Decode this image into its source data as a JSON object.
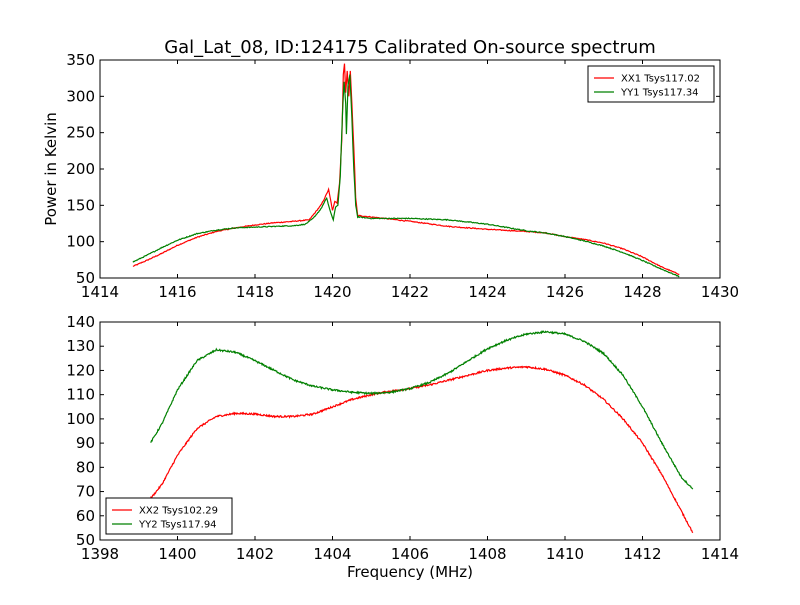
{
  "figure": {
    "title": "Gal_Lat_08, ID:124175 Calibrated On-source spectrum",
    "xlabel": "Frequency (MHz)"
  },
  "chart_data": [
    {
      "type": "line",
      "ylabel": "Power in Kelvin",
      "xlim": [
        1414,
        1430
      ],
      "ylim": [
        50,
        350
      ],
      "xticks": [
        1414,
        1416,
        1418,
        1420,
        1422,
        1424,
        1426,
        1428,
        1430
      ],
      "yticks": [
        50,
        100,
        150,
        200,
        250,
        300,
        350
      ],
      "legend_position": "top-right",
      "series": [
        {
          "name": "XX1 Tsys117.02",
          "color": "#ff0000",
          "points": [
            [
              1414.85,
              66
            ],
            [
              1415.2,
              74
            ],
            [
              1415.6,
              84
            ],
            [
              1416,
              95
            ],
            [
              1416.5,
              106
            ],
            [
              1417,
              114
            ],
            [
              1417.5,
              119
            ],
            [
              1418,
              123
            ],
            [
              1418.5,
              126
            ],
            [
              1419,
              128
            ],
            [
              1419.4,
              130
            ],
            [
              1419.55,
              140
            ],
            [
              1419.7,
              150
            ],
            [
              1419.8,
              160
            ],
            [
              1419.9,
              172
            ],
            [
              1420,
              143
            ],
            [
              1420.06,
              155
            ],
            [
              1420.12,
              153
            ],
            [
              1420.18,
              180
            ],
            [
              1420.24,
              240
            ],
            [
              1420.28,
              330
            ],
            [
              1420.31,
              345
            ],
            [
              1420.34,
              305
            ],
            [
              1420.38,
              335
            ],
            [
              1420.42,
              300
            ],
            [
              1420.46,
              335
            ],
            [
              1420.5,
              290
            ],
            [
              1420.55,
              230
            ],
            [
              1420.6,
              160
            ],
            [
              1420.65,
              136
            ],
            [
              1421,
              134
            ],
            [
              1422,
              128
            ],
            [
              1423,
              121
            ],
            [
              1424,
              117
            ],
            [
              1425,
              114
            ],
            [
              1425.5,
              112
            ],
            [
              1426,
              107
            ],
            [
              1426.5,
              103
            ],
            [
              1427,
              98
            ],
            [
              1427.5,
              90
            ],
            [
              1428,
              79
            ],
            [
              1428.5,
              65
            ],
            [
              1428.95,
              55
            ]
          ]
        },
        {
          "name": "YY1 Tsys117.34",
          "color": "#008000",
          "points": [
            [
              1414.85,
              72
            ],
            [
              1415.2,
              81
            ],
            [
              1415.6,
              92
            ],
            [
              1416,
              102
            ],
            [
              1416.5,
              111
            ],
            [
              1417,
              116
            ],
            [
              1417.5,
              119
            ],
            [
              1418,
              120
            ],
            [
              1418.5,
              121
            ],
            [
              1419,
              122
            ],
            [
              1419.3,
              124
            ],
            [
              1419.5,
              132
            ],
            [
              1419.7,
              145
            ],
            [
              1419.85,
              160
            ],
            [
              1419.95,
              140
            ],
            [
              1420.02,
              130
            ],
            [
              1420.08,
              148
            ],
            [
              1420.14,
              150
            ],
            [
              1420.2,
              190
            ],
            [
              1420.26,
              280
            ],
            [
              1420.3,
              320
            ],
            [
              1420.34,
              290
            ],
            [
              1420.36,
              248
            ],
            [
              1420.4,
              315
            ],
            [
              1420.45,
              330
            ],
            [
              1420.5,
              270
            ],
            [
              1420.55,
              200
            ],
            [
              1420.6,
              150
            ],
            [
              1420.65,
              134
            ],
            [
              1421,
              132
            ],
            [
              1422,
              132
            ],
            [
              1423,
              130
            ],
            [
              1424,
              124
            ],
            [
              1425,
              115
            ],
            [
              1425.5,
              112
            ],
            [
              1426,
              107
            ],
            [
              1426.5,
              101
            ],
            [
              1427,
              94
            ],
            [
              1427.5,
              85
            ],
            [
              1428,
              74
            ],
            [
              1428.5,
              62
            ],
            [
              1428.95,
              52
            ]
          ]
        }
      ]
    },
    {
      "type": "line",
      "xlim": [
        1398,
        1414
      ],
      "ylim": [
        50,
        140
      ],
      "xticks": [
        1398,
        1400,
        1402,
        1404,
        1406,
        1408,
        1410,
        1412,
        1414
      ],
      "yticks": [
        50,
        60,
        70,
        80,
        90,
        100,
        110,
        120,
        130,
        140
      ],
      "legend_position": "bottom-left",
      "series": [
        {
          "name": "XX2 Tsys102.29",
          "color": "#ff0000",
          "points": [
            [
              1399.3,
              67
            ],
            [
              1399.6,
              73
            ],
            [
              1400,
              85
            ],
            [
              1400.5,
              96
            ],
            [
              1401,
              101
            ],
            [
              1401.5,
              102.3
            ],
            [
              1402,
              102
            ],
            [
              1402.5,
              101
            ],
            [
              1403,
              101
            ],
            [
              1403.5,
              102
            ],
            [
              1404,
              105
            ],
            [
              1404.5,
              108
            ],
            [
              1405,
              110
            ],
            [
              1405.5,
              111.5
            ],
            [
              1406,
              112.5
            ],
            [
              1406.5,
              114
            ],
            [
              1407,
              116
            ],
            [
              1407.5,
              118
            ],
            [
              1408,
              120
            ],
            [
              1408.5,
              121
            ],
            [
              1409,
              121.5
            ],
            [
              1409.5,
              120.5
            ],
            [
              1410,
              118
            ],
            [
              1410.5,
              114
            ],
            [
              1411,
              108
            ],
            [
              1411.5,
              100
            ],
            [
              1412,
              90
            ],
            [
              1412.5,
              77
            ],
            [
              1413,
              62
            ],
            [
              1413.3,
              53
            ]
          ]
        },
        {
          "name": "YY2 Tsys117.94",
          "color": "#008000",
          "points": [
            [
              1399.3,
              90
            ],
            [
              1399.6,
              98
            ],
            [
              1400,
              112
            ],
            [
              1400.5,
              124
            ],
            [
              1401,
              128.5
            ],
            [
              1401.5,
              127.5
            ],
            [
              1402,
              124
            ],
            [
              1402.5,
              120
            ],
            [
              1403,
              116
            ],
            [
              1403.5,
              113.5
            ],
            [
              1404,
              112
            ],
            [
              1404.5,
              111
            ],
            [
              1405,
              110.5
            ],
            [
              1405.5,
              111
            ],
            [
              1406,
              112.5
            ],
            [
              1406.5,
              115
            ],
            [
              1407,
              119
            ],
            [
              1407.5,
              124
            ],
            [
              1408,
              129
            ],
            [
              1408.5,
              132.5
            ],
            [
              1409,
              135
            ],
            [
              1409.5,
              136
            ],
            [
              1410,
              135
            ],
            [
              1410.5,
              132
            ],
            [
              1411,
              127
            ],
            [
              1411.5,
              118
            ],
            [
              1412,
              105
            ],
            [
              1412.5,
              90
            ],
            [
              1413,
              76
            ],
            [
              1413.3,
              71
            ]
          ]
        }
      ]
    }
  ]
}
